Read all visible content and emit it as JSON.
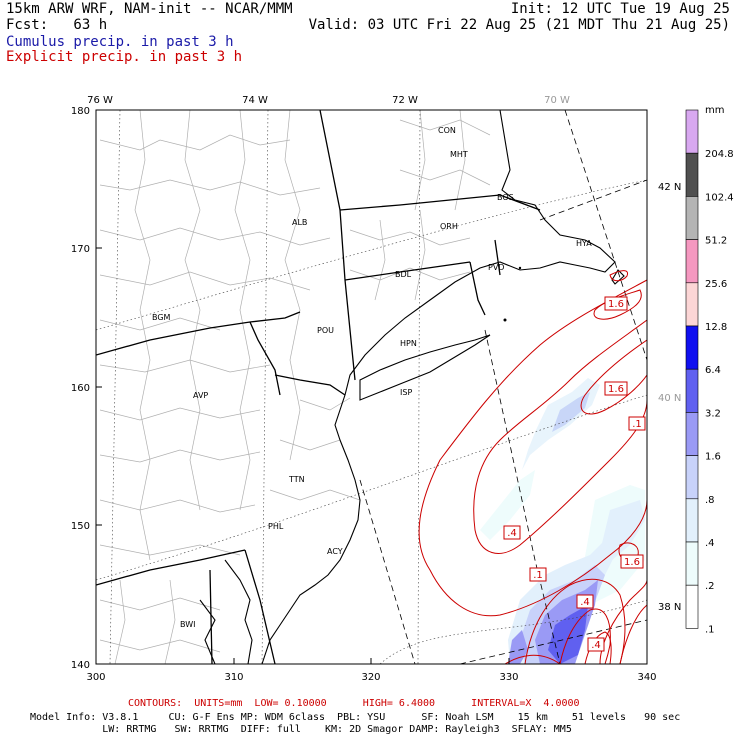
{
  "header": {
    "line1_left": "15km ARW WRF, NAM-init -- NCAR/MMM",
    "line1_right": "Init: 12 UTC Tue 19 Aug 25",
    "line2_left": "Fcst:   63 h",
    "line2_right": "Valid: 03 UTC Fri 22 Aug 25 (21 MDT Thu 21 Aug 25)",
    "line3": "Cumulus precip. in past 3 h",
    "line4": "Explicit precip. in past 3 h"
  },
  "axes": {
    "x_ticks": [
      "300",
      "310",
      "320",
      "330",
      "340"
    ],
    "y_ticks": [
      "140",
      "150",
      "160",
      "170",
      "180"
    ],
    "lon_labels": [
      "76 W",
      "74 W",
      "72 W",
      "70 W"
    ],
    "lat_labels": [
      "42 N",
      "40 N",
      "38 N"
    ]
  },
  "cities": [
    "CON",
    "MHT",
    "BOS",
    "ALB",
    "ORH",
    "HYA",
    "PVD",
    "BDL",
    "BGM",
    "POU",
    "HPN",
    "AVP",
    "ISP",
    "TTN",
    "PHL",
    "ACY",
    "BWI"
  ],
  "contour_labels": [
    "1.6",
    "1.6",
    ".1",
    ".4",
    ".1",
    ".4",
    "1.6",
    ".4"
  ],
  "colorbar": {
    "unit": "mm",
    "levels": [
      "204.8",
      "102.4",
      "51.2",
      "25.6",
      "12.8",
      "6.4",
      "3.2",
      "1.6",
      ".8",
      ".4",
      ".2",
      ".1"
    ],
    "colors": [
      "#d8a8f0",
      "#505050",
      "#b4b4b4",
      "#f598c0",
      "#fcd6d6",
      "#1010f0",
      "#6060f0",
      "#9a9af5",
      "#c8d2fa",
      "#e2f0fc",
      "#eefcfc",
      "#ffffff"
    ]
  },
  "footer": {
    "contours": "CONTOURS:  UNITS=mm  LOW= 0.10000      HIGH= 6.4000      INTERVAL=X  4.0000",
    "model_line1": "Model Info: V3.8.1     CU: G-F Ens MP: WDM 6class  PBL: YSU      SF: Noah LSM    15 km    51 levels   90 sec",
    "model_line2": "            LW: RRTMG   SW: RRTMG  DIFF: full    KM: 2D Smagor DAMP: Rayleigh3  SFLAY: MM5"
  }
}
